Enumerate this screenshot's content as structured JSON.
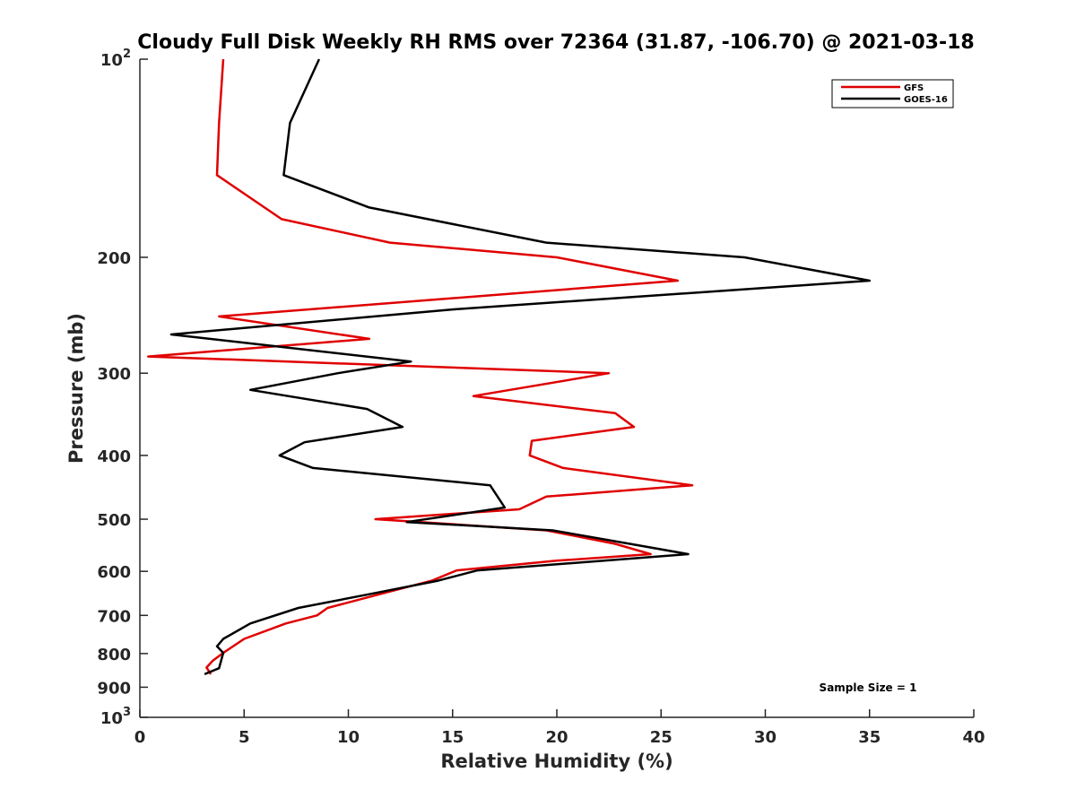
{
  "chart_data": {
    "type": "line",
    "title": "Cloudy Full Disk Weekly RH RMS over 72364 (31.87, -106.70) @ 2021-03-18",
    "xlabel": "Relative Humidity (%)",
    "ylabel": "Pressure (mb)",
    "xlim": [
      0,
      40
    ],
    "ylim": [
      100,
      1000
    ],
    "y_scale": "log",
    "y_reversed": true,
    "x_ticks": [
      0,
      5,
      10,
      15,
      20,
      25,
      30,
      35,
      40
    ],
    "x_tick_labels": [
      "0",
      "5",
      "10",
      "15",
      "20",
      "25",
      "30",
      "35",
      "40"
    ],
    "y_ticks": [
      100,
      200,
      300,
      400,
      500,
      600,
      700,
      800,
      900,
      1000
    ],
    "y_tick_labels": [
      "10^2",
      "200",
      "300",
      "400",
      "500",
      "600",
      "700",
      "800",
      "900",
      "10^3"
    ],
    "legend_position": "top-right",
    "annotation": "Sample Size = 1",
    "series": [
      {
        "name": "GFS",
        "color": "#e00000",
        "points": [
          [
            4.0,
            100
          ],
          [
            3.8,
            125
          ],
          [
            3.7,
            150
          ],
          [
            6.8,
            175
          ],
          [
            12,
            190
          ],
          [
            20,
            200
          ],
          [
            25.8,
            217
          ],
          [
            3.8,
            246
          ],
          [
            11,
            266
          ],
          [
            0.4,
            283
          ],
          [
            22.5,
            300
          ],
          [
            16,
            325
          ],
          [
            22.8,
            345
          ],
          [
            23.7,
            362
          ],
          [
            18.8,
            380
          ],
          [
            18.7,
            400
          ],
          [
            20.3,
            418
          ],
          [
            26.5,
            444
          ],
          [
            19.5,
            462
          ],
          [
            18.2,
            483
          ],
          [
            11.3,
            500
          ],
          [
            19.5,
            520
          ],
          [
            22.8,
            545
          ],
          [
            24.5,
            565
          ],
          [
            20,
            578
          ],
          [
            15.2,
            598
          ],
          [
            14,
            620
          ],
          [
            11.5,
            650
          ],
          [
            9,
            682
          ],
          [
            8.5,
            700
          ],
          [
            7,
            720
          ],
          [
            5,
            760
          ],
          [
            4,
            798
          ],
          [
            3.5,
            820
          ],
          [
            3.2,
            840
          ],
          [
            3.4,
            860
          ]
        ]
      },
      {
        "name": "GOES-16",
        "color": "#000000",
        "points": [
          [
            8.6,
            100
          ],
          [
            7.2,
            125
          ],
          [
            6.9,
            150
          ],
          [
            11,
            168
          ],
          [
            19.5,
            190
          ],
          [
            29,
            200
          ],
          [
            35,
            217
          ],
          [
            15,
            240
          ],
          [
            1.5,
            262
          ],
          [
            13,
            288
          ],
          [
            9.5,
            300
          ],
          [
            5.3,
            318
          ],
          [
            10.9,
            340
          ],
          [
            12.6,
            362
          ],
          [
            7.9,
            382
          ],
          [
            6.7,
            400
          ],
          [
            8.3,
            418
          ],
          [
            16.8,
            444
          ],
          [
            17.5,
            480
          ],
          [
            12.8,
            505
          ],
          [
            19.8,
            520
          ],
          [
            23.5,
            545
          ],
          [
            26.3,
            565
          ],
          [
            16.2,
            598
          ],
          [
            14.3,
            620
          ],
          [
            11,
            650
          ],
          [
            7.6,
            682
          ],
          [
            5.3,
            720
          ],
          [
            4,
            760
          ],
          [
            3.7,
            780
          ],
          [
            4,
            798
          ],
          [
            3.8,
            842
          ],
          [
            3.1,
            860
          ]
        ]
      }
    ]
  }
}
